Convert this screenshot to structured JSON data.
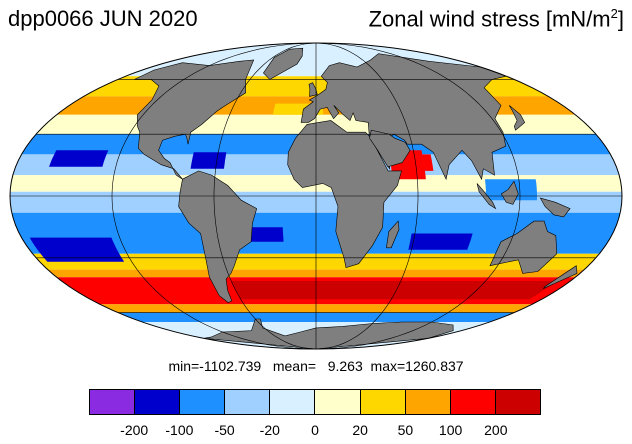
{
  "header": {
    "title_left": "dpp0066 JUN 2020",
    "title_right_main": "Zonal wind stress [mN/m",
    "title_right_sup": "2",
    "title_right_end": "]"
  },
  "stats": {
    "text": "min=-1102.739   mean=   9.263  max=1260.837"
  },
  "colorbar": {
    "colors": [
      "#8a2be2",
      "#0000cd",
      "#1e90ff",
      "#a0d0ff",
      "#d8f0ff",
      "#ffffcc",
      "#ffd700",
      "#ffa500",
      "#ff0000",
      "#cc0000"
    ],
    "labels": [
      "-200",
      "-100",
      "-50",
      "-20",
      "0",
      "20",
      "50",
      "100",
      "200"
    ]
  },
  "map": {
    "projection": "mollweide",
    "land_color": "#7f7f7f",
    "ocean_bands": [
      {
        "lat_from": 90,
        "lat_to": 62,
        "color": "#d8f0ff"
      },
      {
        "lat_from": 62,
        "lat_to": 50,
        "color": "#ffd700"
      },
      {
        "lat_from": 50,
        "lat_to": 40,
        "color": "#ffa500"
      },
      {
        "lat_from": 40,
        "lat_to": 30,
        "color": "#ffffcc"
      },
      {
        "lat_from": 30,
        "lat_to": 20,
        "color": "#1e90ff"
      },
      {
        "lat_from": 20,
        "lat_to": 10,
        "color": "#a0d0ff"
      },
      {
        "lat_from": 10,
        "lat_to": 2,
        "color": "#ffffcc"
      },
      {
        "lat_from": 2,
        "lat_to": -8,
        "color": "#a0d0ff"
      },
      {
        "lat_from": -8,
        "lat_to": -28,
        "color": "#1e90ff"
      },
      {
        "lat_from": -28,
        "lat_to": -36,
        "color": "#ffd700"
      },
      {
        "lat_from": -36,
        "lat_to": -40,
        "color": "#ffa500"
      },
      {
        "lat_from": -40,
        "lat_to": -55,
        "color": "#ff0000"
      },
      {
        "lat_from": -55,
        "lat_to": -60,
        "color": "#ffa500"
      },
      {
        "lat_from": -60,
        "lat_to": -66,
        "color": "#1e90ff"
      },
      {
        "lat_from": -66,
        "lat_to": -90,
        "color": "#d8f0ff"
      }
    ]
  }
}
